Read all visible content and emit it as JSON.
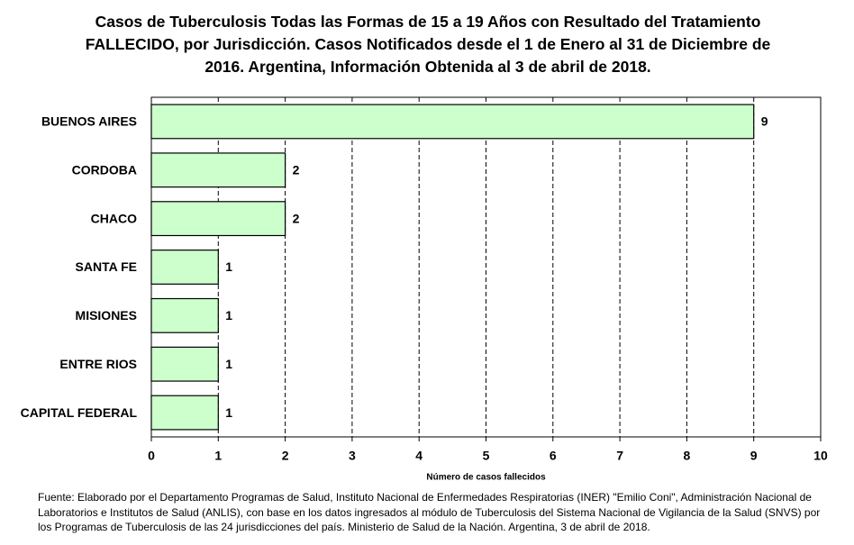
{
  "chart_data": {
    "type": "barh",
    "title": "Casos de Tuberculosis Todas las Formas de 15 a 19 Años con Resultado del Tratamiento FALLECIDO, por Jurisdicción. Casos Notificados desde el 1 de Enero al 31 de Diciembre de 2016. Argentina, Información Obtenida al 3 de abril de 2018.",
    "categories": [
      "BUENOS AIRES",
      "CORDOBA",
      "CHACO",
      "SANTA FE",
      "MISIONES",
      "ENTRE RIOS",
      "CAPITAL FEDERAL"
    ],
    "values": [
      9,
      2,
      2,
      1,
      1,
      1,
      1
    ],
    "color": "#ccffcc",
    "xlim": [
      0,
      10
    ],
    "xticks": [
      0,
      1,
      2,
      3,
      4,
      5,
      6,
      7,
      8,
      9,
      10
    ],
    "xlabel": "Número de casos fallecidos",
    "grid": true,
    "source": "Fuente: Elaborado por el Departamento Programas de Salud, Instituto Nacional de Enfermedades Respiratorias (INER) \"Emilio Coni\", Administración Nacional de Laboratorios e Institutos de Salud (ANLIS), con base en los datos ingresados al módulo de Tuberculosis del Sistema Nacional de Vigilancia de la Salud (SNVS) por los Programas de Tuberculosis de las 24 jurisdicciones del país. Ministerio de Salud de la Nación. Argentina, 3 de abril de 2018."
  }
}
